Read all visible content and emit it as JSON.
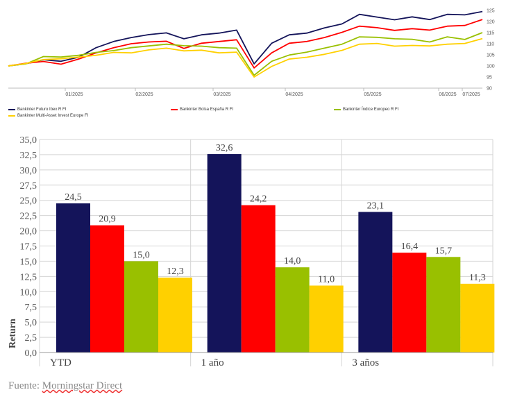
{
  "chart_data": [
    {
      "type": "line",
      "title": "",
      "x_labels": [
        "01/2025",
        "02/2025",
        "03/2025",
        "04/2025",
        "05/2025",
        "06/2025",
        "07/2025"
      ],
      "ylim": [
        90,
        125
      ],
      "yticks": [
        90,
        95,
        100,
        105,
        110,
        115,
        120,
        125
      ],
      "grid": false,
      "series": [
        {
          "name": "Bankinter Futuro Ibex R FI",
          "color": "#14145a",
          "values": [
            100,
            101,
            103,
            102,
            104,
            108,
            111,
            113,
            114,
            115,
            112,
            114,
            115,
            116,
            101,
            110,
            114,
            115,
            117,
            119,
            123,
            122,
            121,
            122,
            121,
            123,
            123,
            124.5
          ]
        },
        {
          "name": "Bankinter Bolsa España R FI",
          "color": "#ff0000",
          "values": [
            100,
            101,
            102,
            101,
            103,
            106,
            108,
            110,
            111,
            111,
            108,
            110,
            111,
            112,
            99,
            106,
            110,
            111,
            113,
            115,
            118,
            117,
            116,
            117,
            116,
            118,
            118,
            120.9
          ]
        },
        {
          "name": "Bankinter Índice Europeo R FI",
          "color": "#99c000",
          "values": [
            100,
            101,
            104,
            104,
            105,
            106,
            107,
            108,
            109,
            110,
            109,
            109,
            108,
            108,
            96,
            102,
            105,
            106,
            108,
            110,
            113,
            113,
            112,
            112,
            111,
            113,
            112,
            115.0
          ]
        },
        {
          "name": "Bankinter Multi-Asset Invest Europe FI",
          "color": "#ffd000",
          "values": [
            100,
            101,
            103,
            103,
            104,
            105,
            106,
            106,
            107,
            108,
            107,
            107,
            106,
            106,
            95,
            100,
            103,
            104,
            105,
            107,
            110,
            110,
            109,
            109,
            109,
            110,
            110,
            112.3
          ]
        }
      ]
    },
    {
      "type": "bar",
      "title": "",
      "xlabel": "",
      "ylabel": "Return",
      "categories": [
        "YTD",
        "1 año",
        "3 años"
      ],
      "ylim": [
        0,
        35
      ],
      "yticks": [
        "0,0",
        "2,5",
        "5,0",
        "7,5",
        "10,0",
        "12,5",
        "15,0",
        "17,5",
        "20,0",
        "22,5",
        "25,0",
        "27,5",
        "30,0",
        "32,5",
        "35,0"
      ],
      "grid": true,
      "series": [
        {
          "name": "Bankinter Futuro Ibex R FI",
          "color": "#14145a",
          "values": [
            24.5,
            32.6,
            23.1
          ],
          "labels": [
            "24,5",
            "32,6",
            "23,1"
          ]
        },
        {
          "name": "Bankinter Bolsa España R FI",
          "color": "#ff0000",
          "values": [
            20.9,
            24.2,
            16.4
          ],
          "labels": [
            "20,9",
            "24,2",
            "16,4"
          ]
        },
        {
          "name": "Bankinter Índice Europeo R FI",
          "color": "#99c000",
          "values": [
            15.0,
            14.0,
            15.7
          ],
          "labels": [
            "15,0",
            "14,0",
            "15,7"
          ]
        },
        {
          "name": "Bankinter Multi-Asset Invest Europe FI",
          "color": "#ffd000",
          "values": [
            12.3,
            11.0,
            11.3
          ],
          "labels": [
            "12,3",
            "11,0",
            "11,3"
          ]
        }
      ]
    }
  ],
  "legend": {
    "items": [
      {
        "label": "Bankinter Futuro Ibex R FI",
        "color": "#14145a"
      },
      {
        "label": "Bankinter Bolsa España R FI",
        "color": "#ff0000"
      },
      {
        "label": "Bankinter Índice Europeo R FI",
        "color": "#99c000"
      },
      {
        "label": "Bankinter Multi-Asset Invest Europe FI",
        "color": "#ffd000"
      }
    ]
  },
  "source": {
    "prefix": "Fuente: ",
    "link": "Morningstar Direct"
  }
}
